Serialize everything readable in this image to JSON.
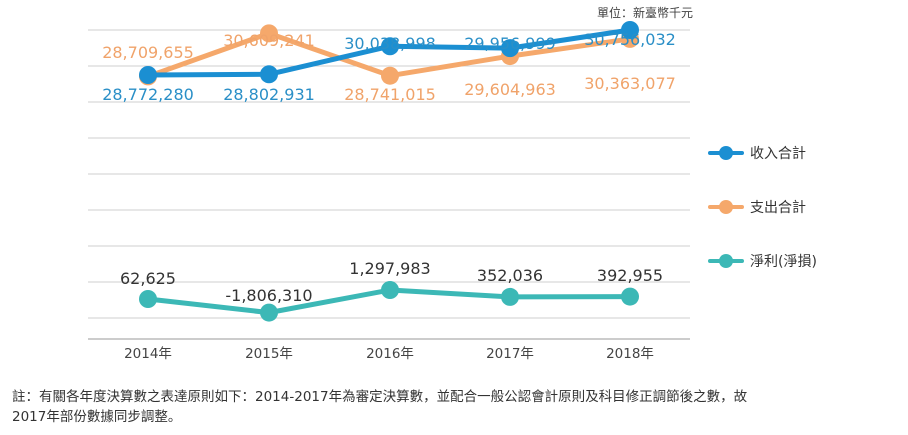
{
  "unit_label": "單位：新臺幣千元",
  "colors": {
    "income": "#1b8fd2",
    "expense": "#f5a86b",
    "net": "#3cb8b6",
    "grid": "#cfcfcf"
  },
  "chart_data": {
    "type": "line",
    "categories": [
      "2014年",
      "2015年",
      "2016年",
      "2017年",
      "2018年"
    ],
    "series": [
      {
        "name": "收入合計",
        "values": [
          28772280,
          28802931,
          30038998,
          29956999,
          30756032
        ],
        "labels": [
          "28,772,280",
          "28,802,931",
          "30,038,998",
          "29,956,999",
          "30,756,032"
        ]
      },
      {
        "name": "支出合計",
        "values": [
          28709655,
          30609241,
          28741015,
          29604963,
          30363077
        ],
        "labels": [
          "28,709,655",
          "30,609,241",
          "28,741,015",
          "29,604,963",
          "30,363,077"
        ]
      },
      {
        "name": "淨利(淨損)",
        "values": [
          62625,
          -1806310,
          1297983,
          352036,
          392955
        ],
        "labels": [
          "62,625",
          "-1,806,310",
          "1,297,983",
          "352,036",
          "392,955"
        ]
      }
    ],
    "grid": true,
    "legend_position": "right"
  },
  "footnote": "註：有關各年度決算數之表達原則如下：2014-2017年為審定決算數，並配合一般公認會計原則及科目修正調節後之數，故\n2017年部份數據同步調整。"
}
